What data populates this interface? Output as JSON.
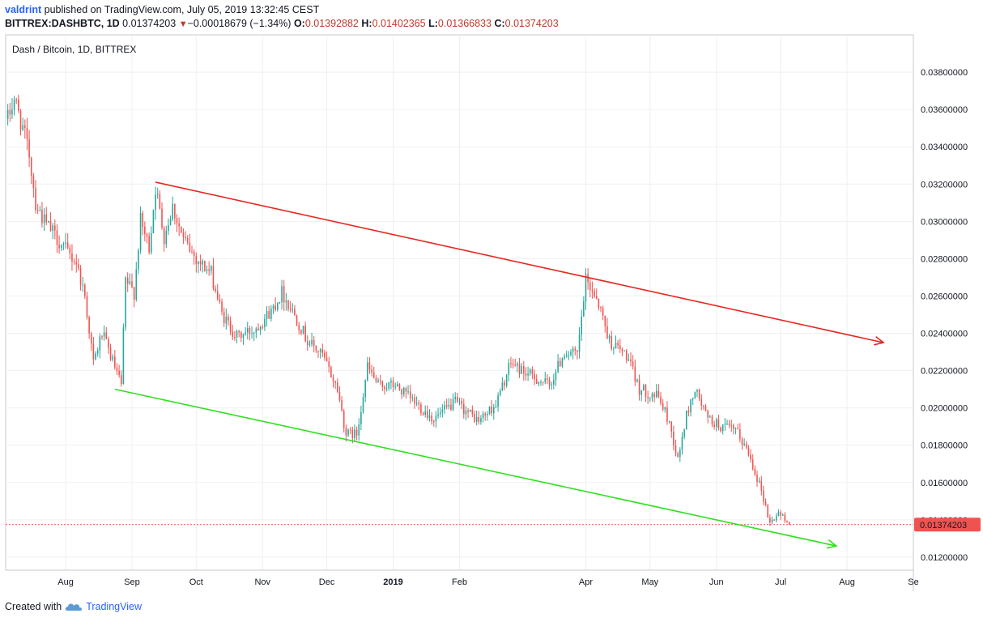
{
  "header": {
    "author": "valdrint",
    "published_text": " published on TradingView.com, July 05, 2019 13:32:45 CEST",
    "symbol": "BITTREX:DASHBTC, 1D",
    "last": "0.01374203",
    "change_arrow": "▼",
    "change": "−0.00018679 (−1.34%)",
    "o_label": "O:",
    "o_val": "0.01392882",
    "h_label": "H:",
    "h_val": "0.01402365",
    "l_label": "L:",
    "l_val": "0.01366833",
    "c_label": "C:",
    "c_val": "0.01374203"
  },
  "footer": {
    "created_with": "Created with",
    "brand": "TradingView"
  },
  "colors": {
    "up": "#26a69a",
    "down": "#ef5350",
    "resistance": "#e8261f",
    "support": "#2ee01f",
    "last_price_line": "#ef5350",
    "price_tag_bg": "#ef5350"
  },
  "chart_data": {
    "type": "candlestick",
    "title": "Dash / Bitcoin, 1D, BITTREX",
    "y_ticks": [
      "0.03800000",
      "0.03600000",
      "0.03400000",
      "0.03200000",
      "0.03000000",
      "0.02800000",
      "0.02600000",
      "0.02400000",
      "0.02200000",
      "0.02000000",
      "0.01800000",
      "0.01600000",
      "0.01400000",
      "0.01200000"
    ],
    "ylim": [
      0.0113,
      0.04
    ],
    "x_ticks": [
      {
        "label": "Aug",
        "date": "2018-08-01"
      },
      {
        "label": "Sep",
        "date": "2018-09-01"
      },
      {
        "label": "Oct",
        "date": "2018-10-01"
      },
      {
        "label": "Nov",
        "date": "2018-11-01"
      },
      {
        "label": "Dec",
        "date": "2018-12-01"
      },
      {
        "label": "2019",
        "date": "2019-01-01"
      },
      {
        "label": "Feb",
        "date": "2019-02-01"
      },
      {
        "label": "Apr",
        "date": "2019-04-01"
      },
      {
        "label": "May",
        "date": "2019-05-01"
      },
      {
        "label": "Jun",
        "date": "2019-06-01"
      },
      {
        "label": "Jul",
        "date": "2019-07-01"
      },
      {
        "label": "Aug",
        "date": "2019-08-01"
      },
      {
        "label": "Se",
        "date": "2019-09-01"
      }
    ],
    "x_range": [
      "2018-07-04",
      "2019-09-01"
    ],
    "last_price": "0.01374203",
    "price_anchors": [
      {
        "date": "2018-07-05",
        "price": 0.0355
      },
      {
        "date": "2018-07-08",
        "price": 0.0366
      },
      {
        "date": "2018-07-12",
        "price": 0.035
      },
      {
        "date": "2018-07-15",
        "price": 0.0336
      },
      {
        "date": "2018-07-18",
        "price": 0.031
      },
      {
        "date": "2018-07-22",
        "price": 0.03
      },
      {
        "date": "2018-07-26",
        "price": 0.0294
      },
      {
        "date": "2018-07-31",
        "price": 0.0286
      },
      {
        "date": "2018-08-06",
        "price": 0.0278
      },
      {
        "date": "2018-08-10",
        "price": 0.026
      },
      {
        "date": "2018-08-14",
        "price": 0.0224
      },
      {
        "date": "2018-08-18",
        "price": 0.024
      },
      {
        "date": "2018-08-22",
        "price": 0.0228
      },
      {
        "date": "2018-08-27",
        "price": 0.0212
      },
      {
        "date": "2018-08-29",
        "price": 0.0268
      },
      {
        "date": "2018-09-02",
        "price": 0.0262
      },
      {
        "date": "2018-09-05",
        "price": 0.03
      },
      {
        "date": "2018-09-09",
        "price": 0.0286
      },
      {
        "date": "2018-09-12",
        "price": 0.0318
      },
      {
        "date": "2018-09-16",
        "price": 0.0292
      },
      {
        "date": "2018-09-20",
        "price": 0.0308
      },
      {
        "date": "2018-09-25",
        "price": 0.029
      },
      {
        "date": "2018-10-01",
        "price": 0.028
      },
      {
        "date": "2018-10-08",
        "price": 0.0272
      },
      {
        "date": "2018-10-13",
        "price": 0.025
      },
      {
        "date": "2018-10-20",
        "price": 0.0238
      },
      {
        "date": "2018-10-28",
        "price": 0.0242
      },
      {
        "date": "2018-11-05",
        "price": 0.0252
      },
      {
        "date": "2018-11-10",
        "price": 0.0262
      },
      {
        "date": "2018-11-16",
        "price": 0.025
      },
      {
        "date": "2018-11-22",
        "price": 0.0236
      },
      {
        "date": "2018-11-29",
        "price": 0.0228
      },
      {
        "date": "2018-12-06",
        "price": 0.021
      },
      {
        "date": "2018-12-10",
        "price": 0.0186
      },
      {
        "date": "2018-12-15",
        "price": 0.0186
      },
      {
        "date": "2018-12-20",
        "price": 0.0222
      },
      {
        "date": "2018-12-25",
        "price": 0.0212
      },
      {
        "date": "2019-01-02",
        "price": 0.0212
      },
      {
        "date": "2019-01-10",
        "price": 0.0204
      },
      {
        "date": "2019-01-20",
        "price": 0.0194
      },
      {
        "date": "2019-01-30",
        "price": 0.0203
      },
      {
        "date": "2019-02-10",
        "price": 0.0193
      },
      {
        "date": "2019-02-18",
        "price": 0.0202
      },
      {
        "date": "2019-02-25",
        "price": 0.0224
      },
      {
        "date": "2019-03-05",
        "price": 0.0218
      },
      {
        "date": "2019-03-15",
        "price": 0.0212
      },
      {
        "date": "2019-03-22",
        "price": 0.023
      },
      {
        "date": "2019-03-28",
        "price": 0.0228
      },
      {
        "date": "2019-04-01",
        "price": 0.0268
      },
      {
        "date": "2019-04-06",
        "price": 0.026
      },
      {
        "date": "2019-04-12",
        "price": 0.0236
      },
      {
        "date": "2019-04-20",
        "price": 0.0228
      },
      {
        "date": "2019-04-26",
        "price": 0.021
      },
      {
        "date": "2019-05-05",
        "price": 0.0206
      },
      {
        "date": "2019-05-10",
        "price": 0.0192
      },
      {
        "date": "2019-05-14",
        "price": 0.0172
      },
      {
        "date": "2019-05-18",
        "price": 0.0196
      },
      {
        "date": "2019-05-22",
        "price": 0.021
      },
      {
        "date": "2019-05-28",
        "price": 0.0194
      },
      {
        "date": "2019-06-03",
        "price": 0.019
      },
      {
        "date": "2019-06-10",
        "price": 0.0188
      },
      {
        "date": "2019-06-16",
        "price": 0.0176
      },
      {
        "date": "2019-06-22",
        "price": 0.0156
      },
      {
        "date": "2019-06-26",
        "price": 0.0138
      },
      {
        "date": "2019-06-30",
        "price": 0.0144
      },
      {
        "date": "2019-07-05",
        "price": 0.0137
      }
    ],
    "trendlines": [
      {
        "name": "resistance",
        "from": {
          "date": "2018-09-12",
          "price": 0.0321
        },
        "to": {
          "date": "2019-08-18",
          "price": 0.0235
        },
        "arrow": true
      },
      {
        "name": "support",
        "from": {
          "date": "2018-08-24",
          "price": 0.021
        },
        "to": {
          "date": "2019-07-27",
          "price": 0.0126
        },
        "arrow": true
      }
    ]
  }
}
